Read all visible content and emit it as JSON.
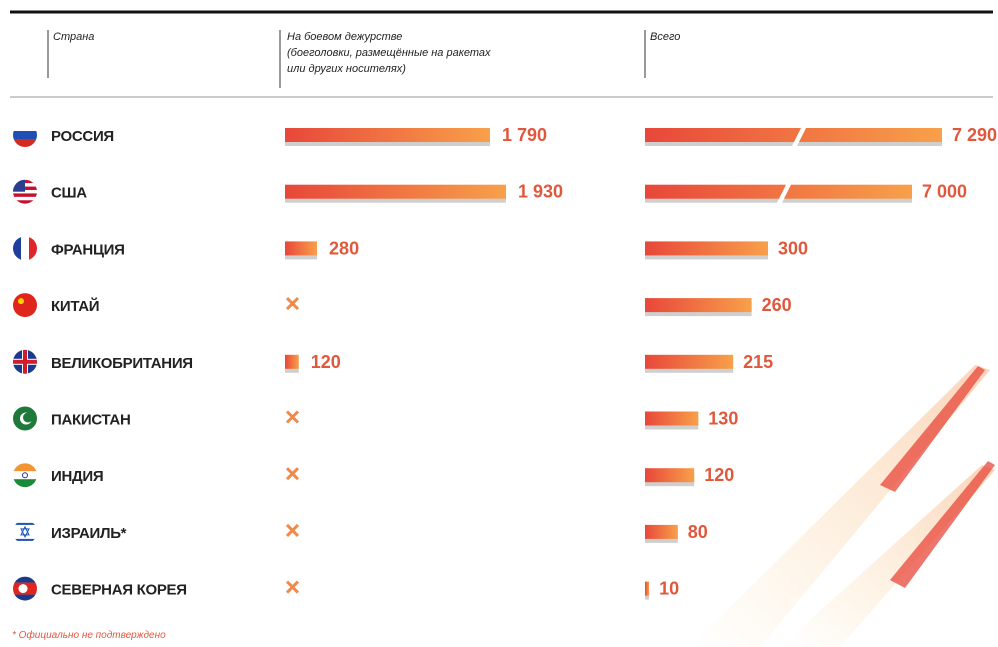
{
  "header": {
    "country": "Страна",
    "deployed": [
      "На боевом дежурстве",
      "(боеголовки, размещённые на ракетах",
      "или других носителях)"
    ],
    "total": "Всего"
  },
  "rows": [
    {
      "country": "РОССИЯ",
      "deployed": 1790,
      "deployed_label": "1 790",
      "total": 7290,
      "total_label": "7 290"
    },
    {
      "country": "США",
      "deployed": 1930,
      "deployed_label": "1 930",
      "total": 7000,
      "total_label": "7 000"
    },
    {
      "country": "ФРАНЦИЯ",
      "deployed": 280,
      "deployed_label": "280",
      "total": 300,
      "total_label": "300"
    },
    {
      "country": "КИТАЙ",
      "deployed": null,
      "deployed_label": null,
      "total": 260,
      "total_label": "260"
    },
    {
      "country": "ВЕЛИКОБРИТАНИЯ",
      "deployed": 120,
      "deployed_label": "120",
      "total": 215,
      "total_label": "215"
    },
    {
      "country": "ПАКИСТАН",
      "deployed": null,
      "deployed_label": null,
      "total": 130,
      "total_label": "130"
    },
    {
      "country": "ИНДИЯ",
      "deployed": null,
      "deployed_label": null,
      "total": 120,
      "total_label": "120"
    },
    {
      "country": "ИЗРАИЛЬ*",
      "deployed": null,
      "deployed_label": null,
      "total": 80,
      "total_label": "80"
    },
    {
      "country": "СЕВЕРНАЯ КОРЕЯ",
      "deployed": null,
      "deployed_label": null,
      "total": 10,
      "total_label": "10"
    }
  ],
  "footnote": "* Официально не подтверждено"
}
